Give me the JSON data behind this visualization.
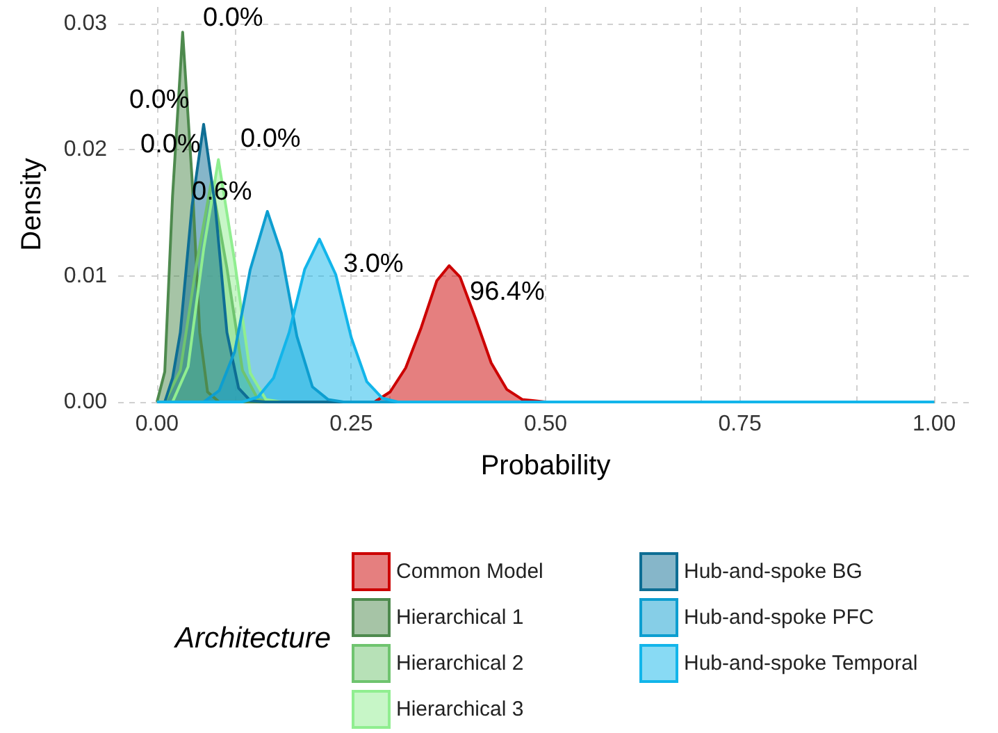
{
  "chart_data": {
    "type": "area",
    "xlabel": "Probability",
    "ylabel": "Density",
    "legend_title": "Architecture",
    "legend": "bottom",
    "grid": true,
    "xlim": [
      -0.05,
      1.05
    ],
    "xticks": [
      {
        "value": 0,
        "label": "0.00"
      },
      {
        "value": 0.25,
        "label": "0.25"
      },
      {
        "value": 0.5,
        "label": "0.50"
      },
      {
        "value": 0.75,
        "label": "0.75"
      },
      {
        "value": 1,
        "label": "1.00"
      }
    ],
    "ylim": [
      0,
      0.0313
    ],
    "yticks": [
      {
        "value": 0,
        "label": "0.00"
      },
      {
        "value": 0.01,
        "label": "0.01"
      },
      {
        "value": 0.02,
        "label": "0.02"
      },
      {
        "value": 0.03,
        "label": "0.03"
      }
    ],
    "series": [
      {
        "name": "Common Model",
        "color": "#cc0000",
        "x": [
          0,
          0.28,
          0.3,
          0.32,
          0.34,
          0.36,
          0.376,
          0.39,
          0.41,
          0.43,
          0.45,
          0.47,
          0.5,
          1
        ],
        "values": [
          0,
          0,
          0.0008,
          0.0027,
          0.0059,
          0.0096,
          0.0108,
          0.0099,
          0.0066,
          0.0031,
          0.001,
          0.0002,
          0,
          0
        ]
      },
      {
        "name": "Hierarchical 1",
        "color": "#4e8a4e",
        "x": [
          0,
          0.01,
          0.02,
          0.033,
          0.045,
          0.055,
          0.065,
          0.08,
          1
        ],
        "values": [
          0,
          0.0024,
          0.0163,
          0.0293,
          0.0178,
          0.0055,
          0.0008,
          0,
          0
        ]
      },
      {
        "name": "Hierarchical 2",
        "color": "#6fc46f",
        "x": [
          0,
          0.01,
          0.03,
          0.05,
          0.07,
          0.09,
          0.11,
          0.13,
          0.15,
          1
        ],
        "values": [
          0,
          0,
          0.0025,
          0.0106,
          0.0175,
          0.0106,
          0.0025,
          0.0002,
          0,
          0
        ]
      },
      {
        "name": "Hierarchical 3",
        "color": "#90ee90",
        "x": [
          0,
          0.02,
          0.04,
          0.06,
          0.079,
          0.1,
          0.12,
          0.14,
          0.16,
          1
        ],
        "values": [
          0,
          0,
          0.0028,
          0.0121,
          0.0192,
          0.0111,
          0.0023,
          0.0002,
          0,
          0
        ]
      },
      {
        "name": "Hub-and-spoke BG",
        "color": "#0e6e94",
        "x": [
          0,
          0.01,
          0.02,
          0.03,
          0.045,
          0.06,
          0.075,
          0.09,
          0.105,
          0.12,
          0.14,
          1
        ],
        "values": [
          0,
          0,
          0.0019,
          0.0055,
          0.0155,
          0.022,
          0.0155,
          0.0055,
          0.0011,
          0.0001,
          0,
          0
        ]
      },
      {
        "name": "Hub-and-spoke PFC",
        "color": "#0d9ed0",
        "x": [
          0,
          0.06,
          0.08,
          0.1,
          0.12,
          0.142,
          0.16,
          0.18,
          0.2,
          0.22,
          0.24,
          1
        ],
        "values": [
          0,
          0,
          0.0009,
          0.004,
          0.0105,
          0.0151,
          0.0118,
          0.0052,
          0.0012,
          0.0002,
          0,
          0
        ]
      },
      {
        "name": "Hub-and-spoke Temporal",
        "color": "#12b5ea",
        "x": [
          0,
          0.11,
          0.13,
          0.15,
          0.17,
          0.19,
          0.209,
          0.23,
          0.25,
          0.27,
          0.29,
          0.31,
          1
        ],
        "values": [
          0,
          0,
          0.0004,
          0.0019,
          0.0055,
          0.0105,
          0.0129,
          0.0101,
          0.0051,
          0.0016,
          0.0003,
          0,
          0
        ]
      }
    ],
    "annotations": [
      "0.0%",
      "0.0%",
      "0.0%",
      "0.0%",
      "0.6%",
      "3.0%",
      "96.4%"
    ]
  }
}
